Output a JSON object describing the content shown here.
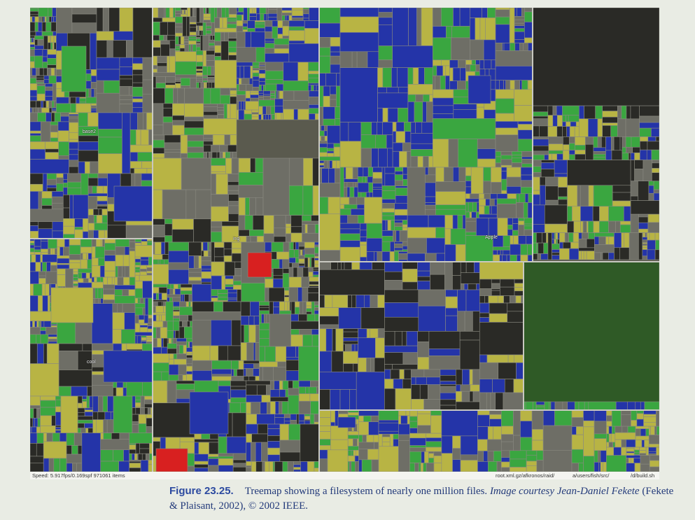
{
  "treemap": {
    "status": {
      "speed": "Speed: 5.917fps/0.169spf 971061 items",
      "path1": "root.xml.gz/afkronos/raid/",
      "path2": "a/users/fish/src/",
      "path3": "/d/build.sh"
    },
    "labels": [
      "base2",
      "cool",
      "ing",
      "Apple"
    ],
    "colors": {
      "green": "#3aa640",
      "blue": "#2434a8",
      "yellow": "#b8b444",
      "gray": "#6e6e66",
      "dark": "#2a2a26",
      "red": "#d82020"
    }
  },
  "caption": {
    "figure_number": "Figure 23.25.",
    "text_main": "Treemap showing a filesystem of nearly one million files.",
    "courtesy_italic": "Image courtesy Jean-Daniel Fekete",
    "citation": "(Fekete & Plaisant, 2002), © 2002 IEEE."
  }
}
